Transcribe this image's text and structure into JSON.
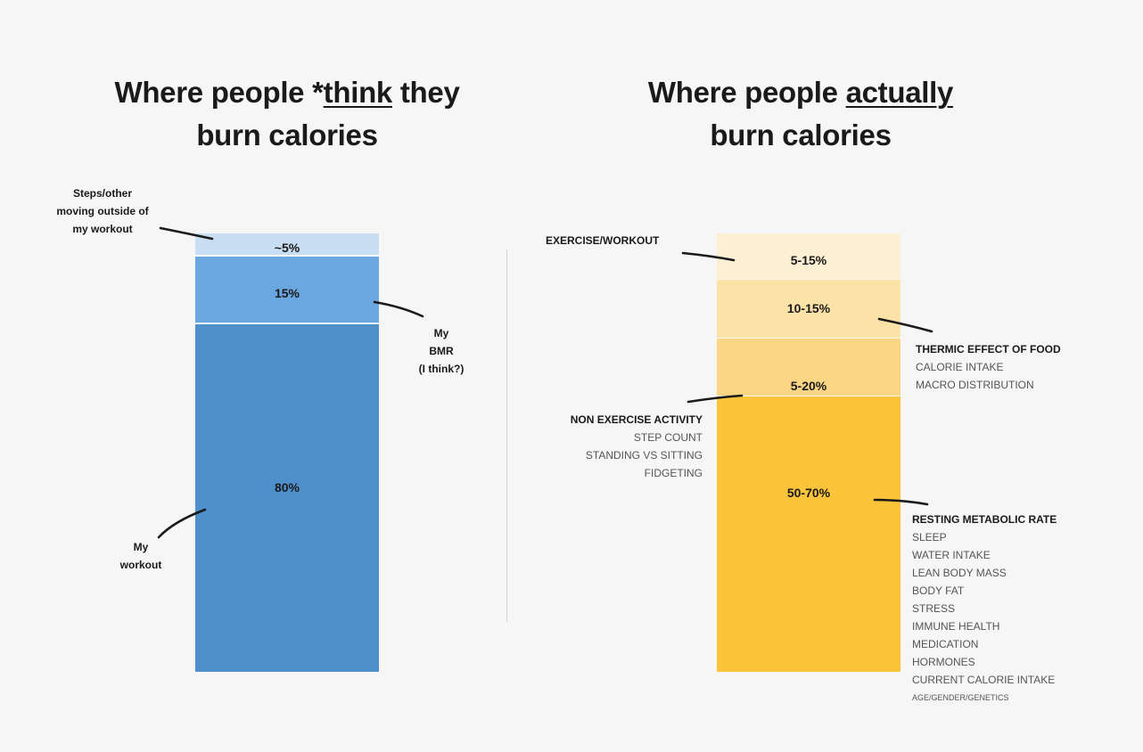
{
  "titles": {
    "left": {
      "pre": "Where people *",
      "underline": "think",
      "post": " they",
      "line2": "burn calories"
    },
    "right": {
      "pre": "Where people ",
      "underline": "actually",
      "post": "",
      "line2": "burn calories"
    }
  },
  "colors": {
    "left_segments": [
      "#c8def3",
      "#6aa6df",
      "#4e8fcc"
    ],
    "right_segments": [
      "#fcefd3",
      "#fbe3a8",
      "#fad583",
      "#fbc43a"
    ]
  },
  "annotations": {
    "left": {
      "steps": [
        "Steps/other",
        "moving outside of",
        "my workout"
      ],
      "bmr": [
        "My",
        "BMR",
        "(I think?)"
      ],
      "workout": [
        "My",
        "workout"
      ]
    },
    "right": {
      "exercise": {
        "title": "EXERCISE/WORKOUT",
        "items": []
      },
      "tef": {
        "title": "THERMIC EFFECT OF FOOD",
        "items": [
          "CALORIE INTAKE",
          "MACRO DISTRIBUTION"
        ]
      },
      "neat": {
        "title": "NON EXERCISE ACTIVITY",
        "items": [
          "STEP COUNT",
          "STANDING VS SITTING",
          "FIDGETING"
        ]
      },
      "rmr": {
        "title": "RESTING METABOLIC RATE",
        "items": [
          "SLEEP",
          "WATER INTAKE",
          "LEAN BODY MASS",
          "BODY FAT",
          "STRESS",
          "IMMUNE HEALTH",
          "MEDICATION",
          "HORMONES",
          "CURRENT CALORIE INTAKE"
        ],
        "small_item": "AGE/GENDER/GENETICS"
      }
    }
  },
  "chart_data": [
    {
      "type": "bar",
      "stacked": true,
      "title": "Where people *think they burn calories",
      "categories": [
        "My workout",
        "My BMR (I think?)",
        "Steps/other moving outside of my workout"
      ],
      "values": [
        80,
        15,
        5
      ],
      "labels": [
        "80%",
        "15%",
        "~5%"
      ]
    },
    {
      "type": "bar",
      "stacked": true,
      "title": "Where people actually burn calories",
      "categories": [
        "RESTING METABOLIC RATE",
        "NON EXERCISE ACTIVITY",
        "THERMIC EFFECT OF FOOD",
        "EXERCISE/WORKOUT"
      ],
      "ranges": [
        [
          50,
          70
        ],
        [
          5,
          20
        ],
        [
          10,
          15
        ],
        [
          5,
          15
        ]
      ],
      "labels": [
        "50-70%",
        "5-20%",
        "10-15%",
        "5-15%"
      ]
    }
  ]
}
